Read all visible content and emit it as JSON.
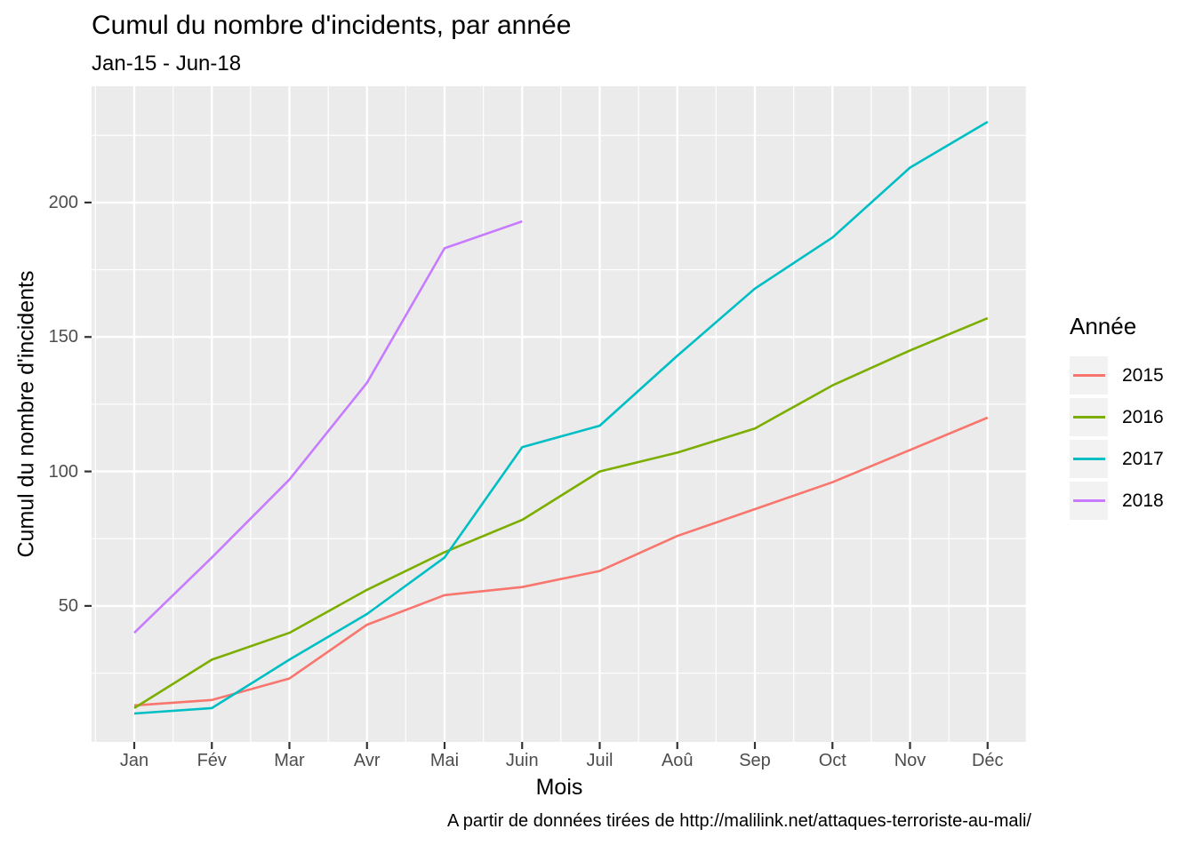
{
  "title": "Cumul du nombre d'incidents, par année",
  "subtitle": "Jan-15 - Jun-18",
  "caption": "A partir de données tirées de http://malilink.net/attaques-terroriste-au-mali/",
  "x_axis": {
    "label": "Mois",
    "ticks": [
      "Jan",
      "Fév",
      "Mar",
      "Avr",
      "Mai",
      "Juin",
      "Juil",
      "Aoû",
      "Sep",
      "Oct",
      "Nov",
      "Déc"
    ]
  },
  "y_axis": {
    "label": "Cumul du nombre d'incidents",
    "ticks": [
      50,
      100,
      150,
      200
    ]
  },
  "legend": {
    "title": "Année",
    "position": "right"
  },
  "colors": {
    "panel_background": "#EBEBEB",
    "grid_line": "#FFFFFF",
    "axis_tick": "#333333",
    "tick_label": "#4D4D4D",
    "legend_key_background": "#F2F2F2"
  },
  "chart_data": {
    "type": "line",
    "title": "Cumul du nombre d'incidents, par année",
    "subtitle": "Jan-15 - Jun-18",
    "xlabel": "Mois",
    "ylabel": "Cumul du nombre d'incidents",
    "categories": [
      "Jan",
      "Fév",
      "Mar",
      "Avr",
      "Mai",
      "Juin",
      "Juil",
      "Aoû",
      "Sep",
      "Oct",
      "Nov",
      "Déc"
    ],
    "series": [
      {
        "name": "2015",
        "color": "#F8766D",
        "values": [
          13,
          15,
          23,
          43,
          54,
          57,
          63,
          76,
          86,
          96,
          108,
          120
        ]
      },
      {
        "name": "2016",
        "color": "#7CAE00",
        "values": [
          12,
          30,
          40,
          56,
          70,
          82,
          100,
          107,
          116,
          132,
          145,
          157
        ]
      },
      {
        "name": "2017",
        "color": "#00BFC4",
        "values": [
          10,
          12,
          30,
          47,
          68,
          109,
          117,
          143,
          168,
          187,
          213,
          230
        ]
      },
      {
        "name": "2018",
        "color": "#C77CFF",
        "values": [
          40,
          68,
          97,
          133,
          183,
          193
        ]
      }
    ],
    "ylim": [
      0,
      243
    ],
    "y_major_gridlines": [
      50,
      100,
      150,
      200
    ],
    "y_minor_gridlines": [
      25,
      75,
      125,
      175,
      225
    ],
    "grid": true,
    "legend_position": "right"
  }
}
